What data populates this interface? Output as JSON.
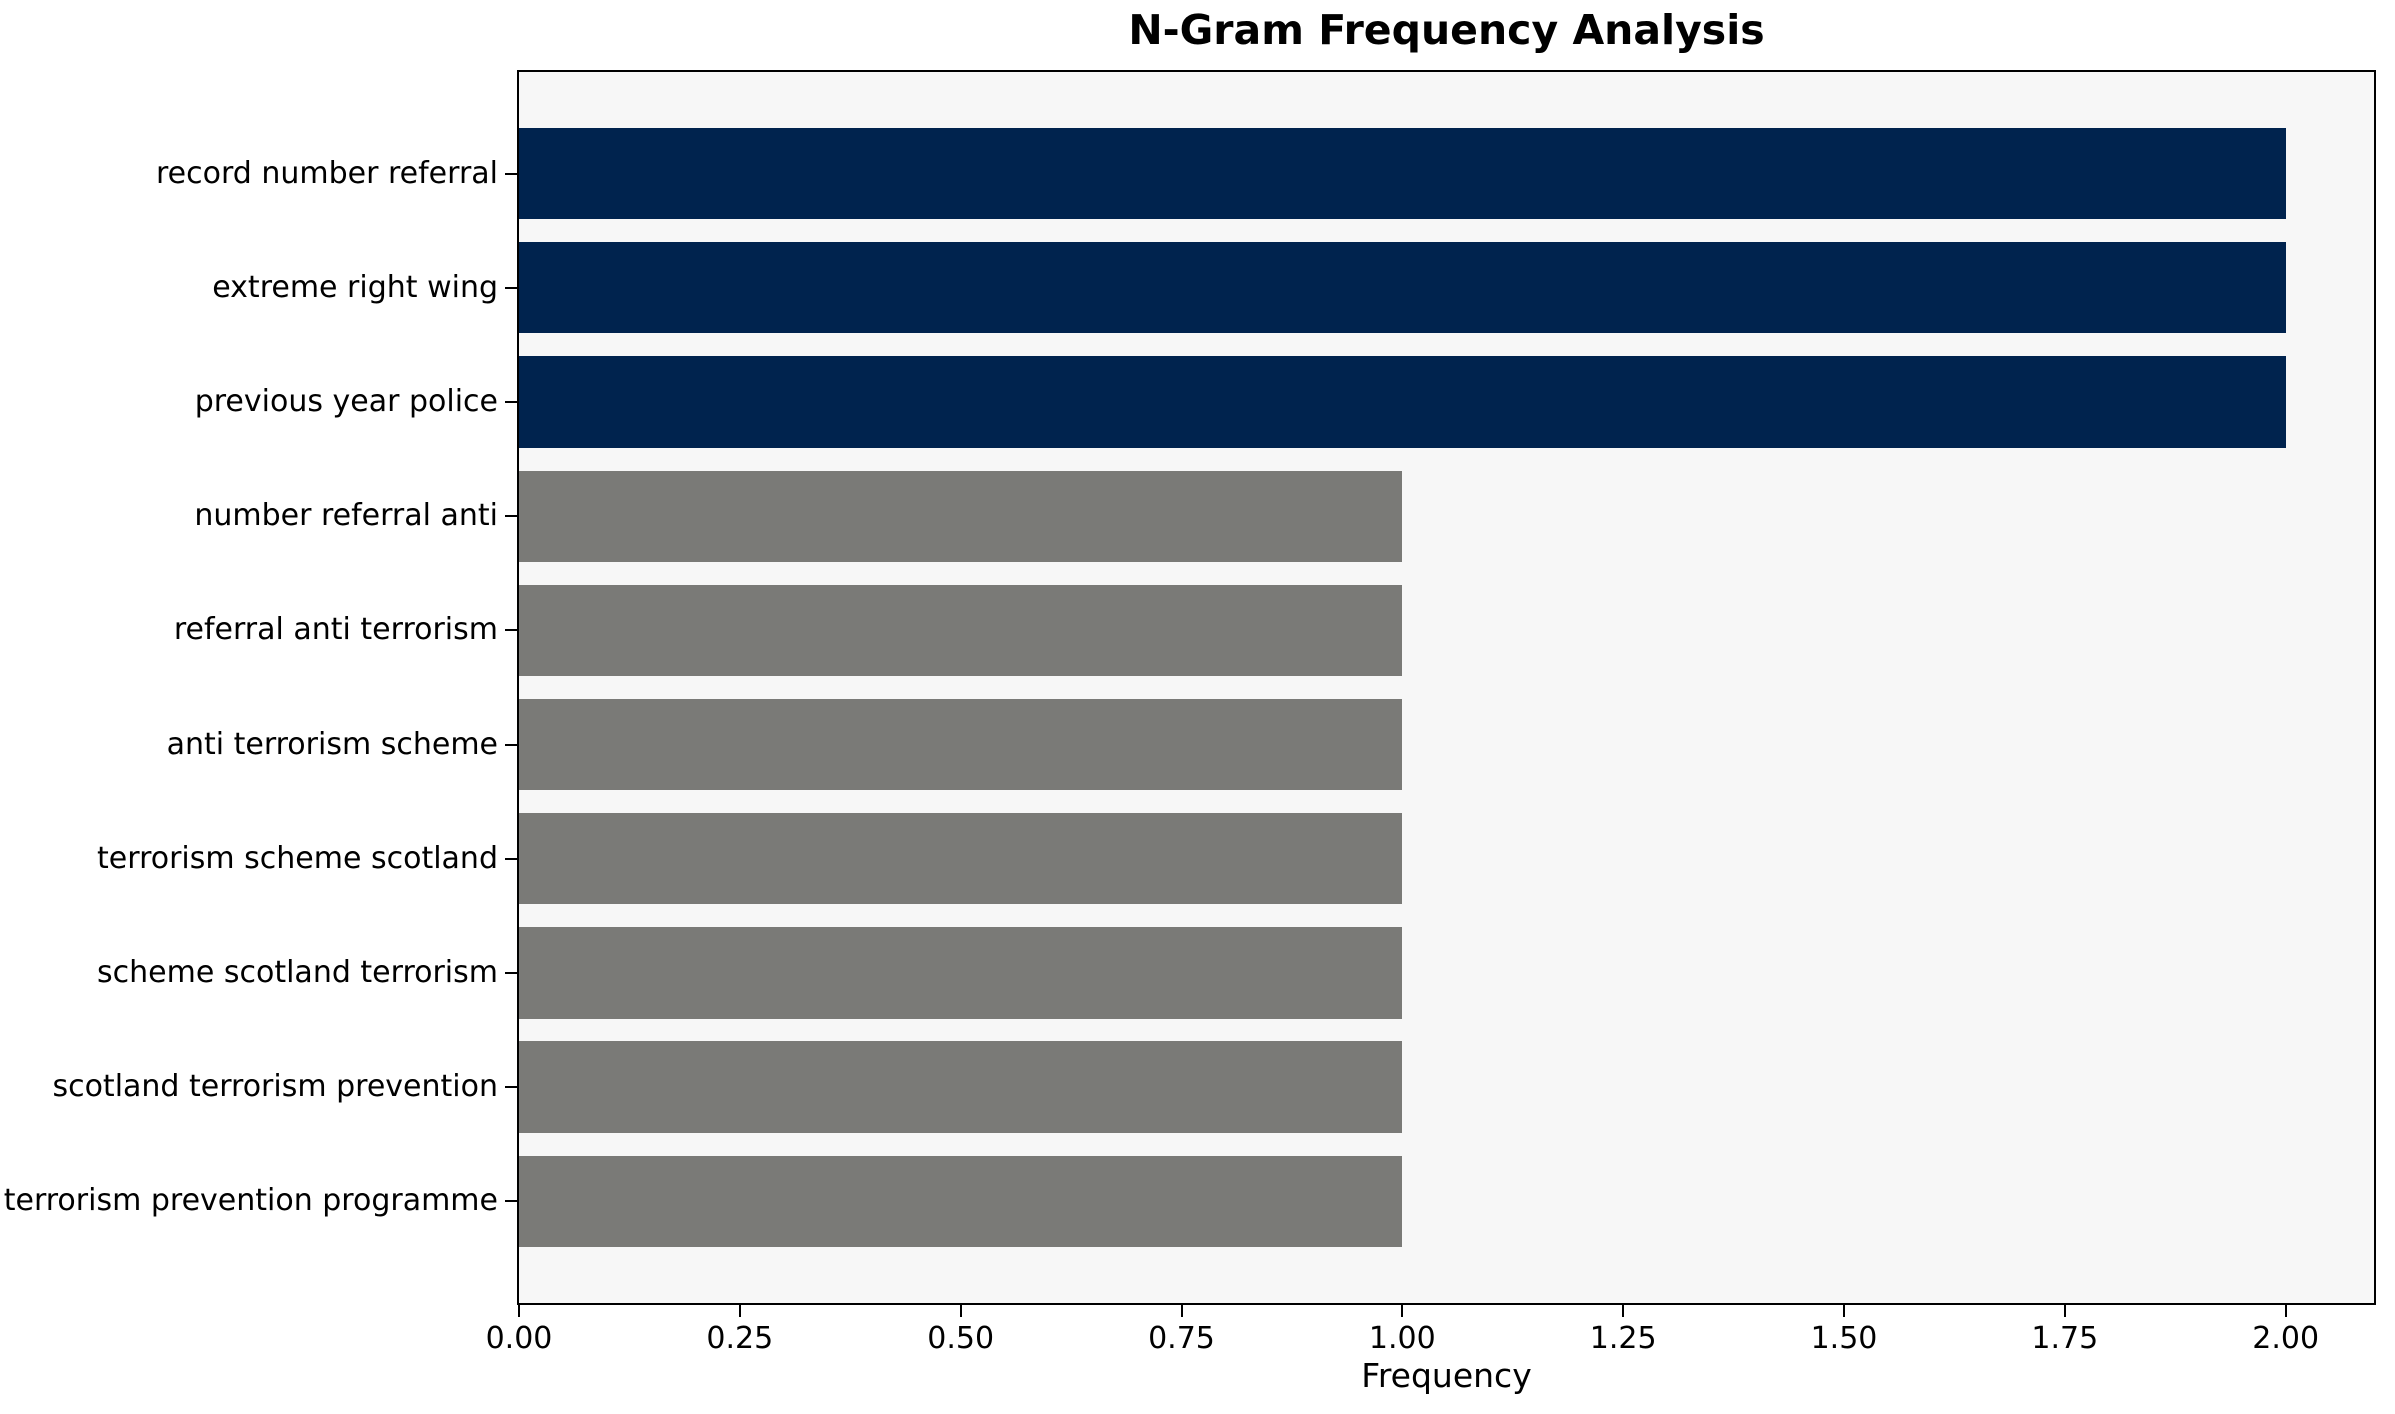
{
  "chart_data": {
    "type": "bar",
    "orientation": "horizontal",
    "title": "N-Gram Frequency Analysis",
    "xlabel": "Frequency",
    "ylabel": "",
    "categories": [
      "record number referral",
      "extreme right wing",
      "previous year police",
      "number referral anti",
      "referral anti terrorism",
      "anti terrorism scheme",
      "terrorism scheme scotland",
      "scheme scotland terrorism",
      "scotland terrorism prevention",
      "terrorism prevention programme"
    ],
    "values": [
      2,
      2,
      2,
      1,
      1,
      1,
      1,
      1,
      1,
      1
    ],
    "bar_colors": [
      "#00234E",
      "#00234E",
      "#00234E",
      "#7A7A77",
      "#7A7A77",
      "#7A7A77",
      "#7A7A77",
      "#7A7A77",
      "#7A7A77",
      "#7A7A77"
    ],
    "xlim": [
      0,
      2.1
    ],
    "xticks": [
      0,
      0.25,
      0.5,
      0.75,
      1,
      1.25,
      1.5,
      1.75,
      2
    ],
    "xtick_labels": [
      "0.00",
      "0.25",
      "0.50",
      "0.75",
      "1.00",
      "1.25",
      "1.50",
      "1.75",
      "2.00"
    ],
    "bar_height_frac": 0.8,
    "grid": false,
    "legend_position": "none",
    "colors": {
      "highlight": "#00234E",
      "muted": "#7A7A77",
      "plot_background": "#F7F7F7",
      "figure_background": "#FFFFFF",
      "axis": "#000000",
      "text": "#000000"
    }
  }
}
